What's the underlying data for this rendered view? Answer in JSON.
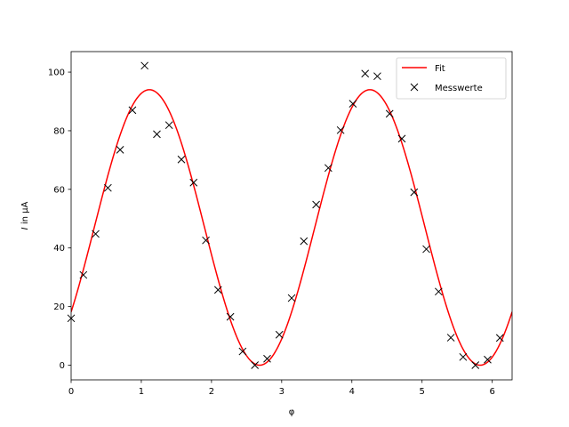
{
  "chart_data": {
    "type": "scatter",
    "xlabel": "φ",
    "ylabel_italic": "I",
    "ylabel_rest": " in µA",
    "xlim": [
      0,
      6.283
    ],
    "ylim": [
      -5,
      107
    ],
    "xticks": [
      0,
      1,
      2,
      3,
      4,
      5,
      6
    ],
    "yticks": [
      0,
      20,
      40,
      60,
      80,
      100
    ],
    "legend_position": "top-right",
    "fit": {
      "name": "Fit",
      "color": "#ff0000",
      "amplitude": 47,
      "frequency": 2,
      "phase": -0.66,
      "offset": 47
    },
    "measurements": {
      "name": "Messwerte",
      "color": "#000000",
      "points": [
        [
          0.0,
          16.0
        ],
        [
          0.175,
          30.8
        ],
        [
          0.349,
          44.8
        ],
        [
          0.524,
          60.5
        ],
        [
          0.698,
          73.5
        ],
        [
          0.873,
          87.0
        ],
        [
          1.047,
          102.2
        ],
        [
          1.222,
          78.8
        ],
        [
          1.396,
          81.9
        ],
        [
          1.571,
          70.2
        ],
        [
          1.745,
          62.3
        ],
        [
          1.92,
          42.6
        ],
        [
          2.094,
          25.7
        ],
        [
          2.269,
          16.5
        ],
        [
          2.443,
          4.7
        ],
        [
          2.618,
          0.0
        ],
        [
          2.793,
          2.2
        ],
        [
          2.967,
          10.4
        ],
        [
          3.142,
          22.9
        ],
        [
          3.316,
          42.3
        ],
        [
          3.491,
          54.8
        ],
        [
          3.665,
          67.3
        ],
        [
          3.84,
          80.2
        ],
        [
          4.014,
          89.2
        ],
        [
          4.189,
          99.5
        ],
        [
          4.363,
          98.6
        ],
        [
          4.538,
          85.8
        ],
        [
          4.712,
          77.3
        ],
        [
          4.887,
          59.0
        ],
        [
          5.061,
          39.6
        ],
        [
          5.236,
          25.1
        ],
        [
          5.411,
          9.4
        ],
        [
          5.585,
          2.8
        ],
        [
          5.76,
          0.0
        ],
        [
          5.934,
          1.9
        ],
        [
          6.109,
          9.3
        ]
      ]
    }
  }
}
